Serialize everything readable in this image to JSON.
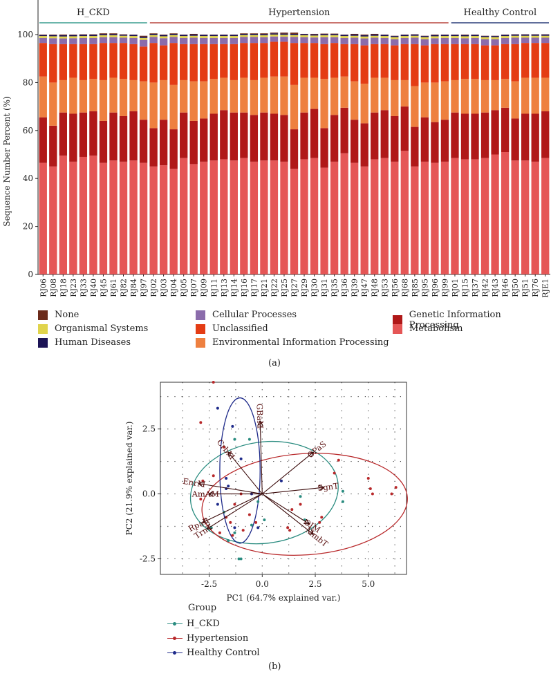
{
  "chart_data": [
    {
      "type": "bar",
      "stacked": true,
      "ylabel": "Sequence Number Percent (%)",
      "ylim": [
        0,
        100
      ],
      "yticks": [
        0,
        20,
        40,
        60,
        80,
        100
      ],
      "categories": [
        "RJ06",
        "RJ08",
        "RJ18",
        "RJ23",
        "RJ33",
        "RJ40",
        "RJ45",
        "RJ61",
        "RJ82",
        "RJ84",
        "RJ97",
        "RJ02",
        "RJ03",
        "RJ04",
        "RJ05",
        "RJ07",
        "RJ09",
        "RJ11",
        "RJ13",
        "RJ14",
        "RJ16",
        "RJ17",
        "RJ21",
        "RJ22",
        "RJ25",
        "RJ27",
        "RJ29",
        "RJ30",
        "RJ31",
        "RJ35",
        "RJ36",
        "RJ39",
        "RJ47",
        "RJ48",
        "RJ53",
        "RJ56",
        "RJ68",
        "RJ85",
        "RJ95",
        "RJ96",
        "RJ99",
        "RJ01",
        "RJ15",
        "RJ37",
        "RJ42",
        "RJ43",
        "RJ46",
        "RJ50",
        "RJ51",
        "RJ76",
        "RJE1"
      ],
      "groups": [
        {
          "name": "H_CKD",
          "start": 0,
          "end": 10,
          "color": "#3a9e8f"
        },
        {
          "name": "Hypertension",
          "start": 11,
          "end": 40,
          "color": "#b8473f"
        },
        {
          "name": "Healthy Control",
          "start": 41,
          "end": 50,
          "color": "#2c3e7a"
        }
      ],
      "series": [
        {
          "name": "Metabolism",
          "color": "#e55656",
          "values": [
            46.5,
            45,
            49.5,
            47,
            49,
            49.5,
            46.5,
            47.5,
            47,
            47.5,
            46.5,
            45,
            45.5,
            44,
            48.5,
            46,
            47,
            47.5,
            48,
            47.5,
            48.5,
            47,
            47.5,
            47.5,
            47,
            44,
            48,
            48.5,
            44.5,
            47,
            50.5,
            46.5,
            45,
            48,
            48.5,
            47,
            51.5,
            45,
            47,
            46.5,
            47,
            48.5,
            48,
            48,
            48.5,
            50,
            51,
            47.5,
            47.5,
            47,
            48.5
          ]
        },
        {
          "name": "Genetic Information Processing",
          "color": "#b01818",
          "values": [
            19,
            17,
            18,
            20,
            18.5,
            18.5,
            17.5,
            20,
            19,
            20.5,
            18,
            16,
            19,
            16.5,
            19,
            18,
            18,
            19.5,
            20.5,
            20,
            19,
            19.5,
            20,
            19.5,
            19.5,
            16.5,
            19.5,
            20.5,
            16.5,
            19.5,
            19,
            18,
            18,
            19.5,
            20,
            19,
            18.5,
            16.5,
            18.5,
            17,
            17.5,
            19,
            19,
            19,
            19,
            18.5,
            18.5,
            17.5,
            19.5,
            20,
            19.5
          ]
        },
        {
          "name": "Environmental Information Processing",
          "color": "#ee8040",
          "values": [
            17,
            18,
            13.5,
            15,
            13.5,
            13.5,
            17,
            14.5,
            15.5,
            13,
            16,
            19,
            16.5,
            18.5,
            13.5,
            16.5,
            15.5,
            14.5,
            13.5,
            13.5,
            14.5,
            14.5,
            14.5,
            15.5,
            16,
            18.5,
            14.5,
            13,
            20.5,
            15.5,
            13,
            16,
            16.5,
            14.5,
            13.5,
            15,
            11,
            17,
            14.5,
            16.5,
            16,
            13.5,
            14.5,
            14.5,
            13.5,
            12.5,
            12,
            15.5,
            15,
            15,
            14
          ]
        },
        {
          "name": "Unclassified",
          "color": "#e43c14",
          "values": [
            14,
            16,
            15,
            14,
            15,
            14.5,
            15.5,
            14.5,
            15,
            15,
            14.5,
            16.5,
            14.5,
            17.5,
            15,
            15.5,
            15.5,
            14.5,
            14,
            15,
            14.5,
            15.5,
            14.5,
            14.5,
            14.5,
            17.5,
            14.5,
            14.5,
            14.5,
            14.5,
            13.5,
            15.5,
            16,
            14,
            14,
            14.5,
            15,
            17.5,
            15.5,
            16,
            15.5,
            15,
            14.5,
            14.5,
            14.5,
            14.5,
            14.5,
            15.5,
            14.5,
            14.5,
            14.5
          ]
        },
        {
          "name": "Cellular Processes",
          "color": "#8b6cab",
          "values": [
            2.1,
            2.5,
            2.4,
            2.5,
            2.6,
            2.6,
            2.4,
            2.4,
            2.2,
            2.6,
            2.8,
            2.5,
            3,
            2.5,
            2.6,
            2.7,
            2.6,
            2.6,
            2.6,
            2.6,
            2.5,
            2.5,
            2.4,
            2.2,
            2.1,
            2.5,
            2.4,
            2.3,
            2.9,
            2.4,
            2.6,
            2.7,
            2.9,
            2.7,
            2.6,
            2.6,
            2.6,
            2.7,
            2.6,
            2.5,
            2.6,
            2.6,
            2.5,
            2.6,
            2.6,
            2.6,
            2.6,
            2.7,
            2.2,
            2.2,
            2.2
          ]
        },
        {
          "name": "Organismal Systems",
          "color": "#e0d44c",
          "values": [
            0.8,
            0.8,
            0.8,
            0.8,
            0.8,
            0.8,
            0.8,
            0.8,
            0.8,
            0.8,
            0.8,
            0.8,
            0.8,
            0.8,
            0.8,
            0.8,
            0.8,
            0.8,
            0.8,
            0.8,
            0.8,
            0.8,
            0.8,
            0.8,
            0.8,
            0.8,
            0.8,
            0.8,
            0.8,
            0.8,
            0.8,
            0.8,
            0.8,
            0.8,
            0.8,
            0.8,
            0.8,
            0.8,
            0.8,
            0.8,
            0.8,
            0.8,
            0.8,
            0.8,
            0.8,
            0.8,
            0.8,
            0.8,
            0.8,
            0.8,
            0.8
          ]
        },
        {
          "name": "Human Diseases",
          "color": "#1c1456",
          "values": [
            0.4,
            0.5,
            0.5,
            0.5,
            0.5,
            0.5,
            0.5,
            0.5,
            0.4,
            0.5,
            0.5,
            0.5,
            0.5,
            0.5,
            0.5,
            0.5,
            0.5,
            0.5,
            0.5,
            0.5,
            0.5,
            0.5,
            0.5,
            0.5,
            0.5,
            0.5,
            0.5,
            0.5,
            0.5,
            0.5,
            0.5,
            0.5,
            0.5,
            0.5,
            0.5,
            0.5,
            0.5,
            0.5,
            0.5,
            0.5,
            0.5,
            0.5,
            0.5,
            0.5,
            0.5,
            0.5,
            0.5,
            0.5,
            0.5,
            0.5,
            0.5
          ]
        },
        {
          "name": "None",
          "color": "#6b2a1a",
          "values": [
            0.2,
            0.2,
            0.3,
            0.2,
            0.2,
            0.2,
            0.3,
            0.3,
            0.2,
            0.1,
            0.4,
            0.2,
            0.2,
            0.2,
            0.1,
            0.3,
            0.1,
            0.1,
            0.1,
            0.1,
            0.2,
            0.2,
            0.3,
            0.3,
            0.4,
            0.5,
            0.1,
            0.2,
            0.2,
            0.2,
            0.1,
            0.3,
            0.3,
            0.3,
            0.1,
            0.1,
            0.1,
            0.1,
            0.1,
            0.2,
            0.1,
            0.1,
            0.2,
            0.1,
            0.1,
            0.1,
            0.1,
            0.1,
            0.1,
            0.1,
            0.1
          ]
        }
      ],
      "legend": [
        {
          "label": "None",
          "color": "#6b2a1a"
        },
        {
          "label": "Organismal Systems",
          "color": "#e0d44c"
        },
        {
          "label": "Human Diseases",
          "color": "#1c1456"
        },
        {
          "label": "Cellular Processes",
          "color": "#8b6cab"
        },
        {
          "label": "Unclassified",
          "color": "#e43c14"
        },
        {
          "label": "Environmental Information Processing",
          "color": "#ee8040"
        },
        {
          "label": "Genetic Information Processing",
          "color": "#b01818"
        },
        {
          "label": "Metabolism",
          "color": "#e55656"
        }
      ],
      "caption": "(a)"
    },
    {
      "type": "scatter",
      "subtype": "pca-biplot",
      "xlabel": "PC1 (64.7% explained var.)",
      "ylabel": "PC2 (21.9% explained var.)",
      "xlim": [
        -4.8,
        6.8
      ],
      "ylim": [
        -3.1,
        4.3
      ],
      "xticks": [
        -2.5,
        0.0,
        2.5,
        5.0
      ],
      "xtick_labels": [
        "-2.5",
        "0.0",
        "2.5",
        "5.0"
      ],
      "yticks": [
        -2.5,
        0.0,
        2.5
      ],
      "ytick_labels": [
        "-2.5",
        "0.0",
        "2.5"
      ],
      "grid": "dotted",
      "loadings": [
        {
          "label": "GBaM",
          "x": -0.1,
          "y": 2.8
        },
        {
          "label": "CPaS",
          "x": 2.4,
          "y": 1.6
        },
        {
          "label": "SgnT",
          "x": 2.9,
          "y": 0.25
        },
        {
          "label": "CrbM",
          "x": -1.6,
          "y": 1.6
        },
        {
          "label": "EnrM",
          "x": -3.0,
          "y": 0.4
        },
        {
          "label": "AmAM",
          "x": -2.5,
          "y": 0.0
        },
        {
          "label": "RpaR",
          "x": -2.8,
          "y": -1.1
        },
        {
          "label": "TrnT",
          "x": -2.6,
          "y": -1.35
        },
        {
          "label": "OIM",
          "x": 2.2,
          "y": -1.15
        },
        {
          "label": "MmbT",
          "x": 2.4,
          "y": -1.55
        }
      ],
      "groups": [
        {
          "name": "H_CKD",
          "color": "#2a8c80",
          "ellipse": {
            "cx": 0.1,
            "cy": 0.05,
            "rx": 3.5,
            "ry": 1.95,
            "angle": 8
          },
          "points": [
            [
              -1.3,
              2.1
            ],
            [
              -0.6,
              2.1
            ],
            [
              -1.3,
              -1.5
            ],
            [
              -0.5,
              -1.2
            ],
            [
              -1.6,
              -1.8
            ],
            [
              -1.0,
              -2.5
            ],
            [
              -1.1,
              -2.5
            ],
            [
              0.1,
              -1.0
            ],
            [
              1.8,
              -0.1
            ],
            [
              2.0,
              -1.0
            ],
            [
              3.8,
              -0.3
            ],
            [
              3.8,
              0.1
            ],
            [
              -2.4,
              -1.3
            ],
            [
              -0.2,
              -0.3
            ],
            [
              -1.8,
              -0.7
            ]
          ]
        },
        {
          "name": "Hypertension",
          "color": "#b8282a",
          "ellipse": {
            "cx": 2.0,
            "cy": -0.4,
            "rx": 4.85,
            "ry": 1.95,
            "angle": 4
          },
          "points": [
            [
              -2.3,
              4.3
            ],
            [
              -2.9,
              2.75
            ],
            [
              -1.8,
              1.8
            ],
            [
              -2.8,
              0.5
            ],
            [
              -2.9,
              -0.2
            ],
            [
              -2.3,
              0.7
            ],
            [
              -1.0,
              0.0
            ],
            [
              -1.3,
              -0.4
            ],
            [
              -0.6,
              -0.8
            ],
            [
              -1.5,
              -1.1
            ],
            [
              -2.0,
              -1.5
            ],
            [
              -1.4,
              -1.6
            ],
            [
              -0.9,
              -1.4
            ],
            [
              -0.3,
              -1.1
            ],
            [
              1.4,
              -0.6
            ],
            [
              1.8,
              -0.4
            ],
            [
              1.3,
              -1.4
            ],
            [
              2.8,
              -0.9
            ],
            [
              2.7,
              -1.1
            ],
            [
              3.6,
              1.3
            ],
            [
              3.4,
              0.8
            ],
            [
              5.0,
              0.6
            ],
            [
              5.1,
              0.2
            ],
            [
              5.2,
              0.0
            ],
            [
              6.3,
              0.25
            ],
            [
              6.1,
              0.0
            ],
            [
              1.2,
              -1.3
            ],
            [
              -1.7,
              -0.9
            ]
          ]
        },
        {
          "name": "Healthy Control",
          "color": "#1e2a8a",
          "ellipse": {
            "cx": -1.05,
            "cy": 0.9,
            "rx": 0.95,
            "ry": 2.8,
            "angle": 0
          },
          "points": [
            [
              -2.1,
              3.3
            ],
            [
              -1.4,
              2.6
            ],
            [
              -1.0,
              1.35
            ],
            [
              -1.7,
              0.6
            ],
            [
              -1.7,
              0.2
            ],
            [
              -2.1,
              -0.4
            ],
            [
              -1.3,
              -1.3
            ],
            [
              -0.5,
              0.0
            ],
            [
              0.9,
              0.5
            ],
            [
              -0.2,
              -1.3
            ],
            [
              -1.6,
              0.3
            ]
          ]
        }
      ],
      "legend_title": "Group",
      "legend": [
        {
          "label": "H_CKD",
          "color": "#2a8c80"
        },
        {
          "label": "Hypertension",
          "color": "#b8282a"
        },
        {
          "label": "Healthy Control",
          "color": "#1e2a8a"
        }
      ],
      "caption": "(b)"
    }
  ]
}
